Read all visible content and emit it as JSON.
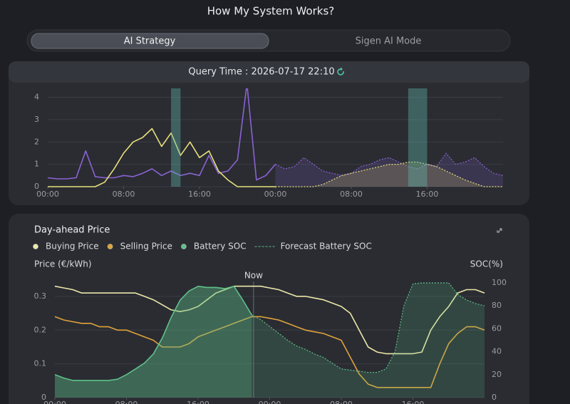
{
  "header": {
    "title": "How My System Works?"
  },
  "tabs": [
    "AI Strategy",
    "Sigen AI Mode"
  ],
  "query_time": "Query Time : 2026-07-17 22:10",
  "chart_data": [
    {
      "type": "line",
      "x": [
        0,
        1,
        2,
        3,
        4,
        5,
        6,
        7,
        8,
        9,
        10,
        11,
        12,
        13,
        14,
        15,
        16,
        17,
        18,
        19,
        20,
        21,
        22,
        23,
        24,
        25,
        26,
        27,
        28,
        29,
        30,
        31,
        32,
        33,
        34,
        35,
        36,
        37,
        38,
        39,
        40,
        41,
        42,
        43,
        44,
        45,
        46,
        47,
        48
      ],
      "xlim": [
        0,
        48
      ],
      "xticks": [
        {
          "value": 0,
          "label": "00:00"
        },
        {
          "value": 8,
          "label": "08:00"
        },
        {
          "value": 16,
          "label": "16:00"
        },
        {
          "value": 24,
          "label": "00:00"
        },
        {
          "value": 32,
          "label": "08:00"
        },
        {
          "value": 40,
          "label": "16:00"
        }
      ],
      "ylim": [
        0,
        4.4
      ],
      "yticks": [
        0,
        1,
        2,
        3,
        4
      ],
      "series": [
        {
          "color": "#8a63d2",
          "dash": false,
          "fill": false,
          "values": [
            0.4,
            0.35,
            0.35,
            0.4,
            1.6,
            0.45,
            0.4,
            0.4,
            0.5,
            0.45,
            0.6,
            0.8,
            0.5,
            0.7,
            0.5,
            0.6,
            0.5,
            1.4,
            0.6,
            0.7,
            1.2,
            4.6,
            0.3,
            0.5,
            1.0,
            null,
            null,
            null,
            null,
            null,
            null,
            null,
            null,
            null,
            null,
            null,
            null,
            null,
            null,
            null,
            null,
            null,
            null,
            null,
            null,
            null,
            null,
            null,
            null
          ]
        },
        {
          "color": "#8a63d2",
          "dash": true,
          "fill": true,
          "values": [
            null,
            null,
            null,
            null,
            null,
            null,
            null,
            null,
            null,
            null,
            null,
            null,
            null,
            null,
            null,
            null,
            null,
            null,
            null,
            null,
            null,
            null,
            null,
            null,
            1.0,
            0.8,
            0.9,
            1.3,
            1.0,
            0.7,
            0.6,
            0.5,
            0.6,
            0.9,
            1.0,
            1.2,
            1.3,
            1.1,
            0.9,
            0.8,
            1.0,
            0.9,
            1.5,
            1.0,
            1.1,
            1.3,
            0.9,
            0.6,
            0.5
          ]
        },
        {
          "color": "#e8df7a",
          "dash": false,
          "fill": false,
          "values": [
            0,
            0,
            0,
            0,
            0,
            0,
            0.2,
            0.8,
            1.5,
            2.0,
            2.2,
            2.6,
            1.8,
            2.4,
            1.4,
            2.0,
            1.3,
            1.6,
            0.7,
            0.3,
            0,
            0,
            0,
            0,
            0,
            null,
            null,
            null,
            null,
            null,
            null,
            null,
            null,
            null,
            null,
            null,
            null,
            null,
            null,
            null,
            null,
            null,
            null,
            null,
            null,
            null,
            null,
            null,
            null
          ]
        },
        {
          "color": "#e8df7a",
          "dash": true,
          "fill": true,
          "values": [
            null,
            null,
            null,
            null,
            null,
            null,
            null,
            null,
            null,
            null,
            null,
            null,
            null,
            null,
            null,
            null,
            null,
            null,
            null,
            null,
            null,
            null,
            null,
            null,
            0,
            0,
            0,
            0,
            0,
            0.1,
            0.3,
            0.5,
            0.6,
            0.7,
            0.8,
            0.9,
            1.0,
            1.0,
            1.1,
            1.1,
            1.0,
            0.9,
            0.7,
            0.5,
            0.3,
            0.15,
            0,
            0,
            0
          ]
        },
        {
          "color": "#5fb3a8",
          "dash": false,
          "fill": true,
          "values": [
            null,
            null,
            null,
            null,
            null,
            null,
            null,
            null,
            null,
            null,
            null,
            null,
            null,
            4.6,
            4.6,
            null,
            null,
            null,
            null,
            null,
            null,
            null,
            null,
            null,
            null,
            null,
            null,
            null,
            null,
            null,
            null,
            null,
            null,
            null,
            null,
            null,
            null,
            null,
            4.6,
            4.6,
            4.6,
            null,
            null,
            null,
            null,
            null,
            null,
            null,
            null
          ]
        }
      ]
    },
    {
      "type": "line",
      "title": "Day-ahead Price",
      "y_label": "Price (€/kWh)",
      "y2_label": "SOC(%)",
      "annotation": {
        "x": 22.2,
        "text": "Now"
      },
      "x": [
        0,
        1,
        2,
        3,
        4,
        5,
        6,
        7,
        8,
        9,
        10,
        11,
        12,
        13,
        14,
        15,
        16,
        17,
        18,
        19,
        20,
        21,
        22,
        23,
        24,
        25,
        26,
        27,
        28,
        29,
        30,
        31,
        32,
        33,
        34,
        35,
        36,
        37,
        38,
        39,
        40,
        41,
        42,
        43,
        44,
        45,
        46,
        47,
        48
      ],
      "xlim": [
        0,
        48
      ],
      "xticks": [
        {
          "value": 0,
          "label": "00:00"
        },
        {
          "value": 8,
          "label": "08:00"
        },
        {
          "value": 16,
          "label": "16:00"
        },
        {
          "value": 24,
          "label": "00:00"
        },
        {
          "value": 32,
          "label": "08:00"
        },
        {
          "value": 40,
          "label": "16:00"
        }
      ],
      "ylim": [
        0,
        0.34
      ],
      "yticks": [
        0,
        0.1,
        0.2,
        0.3
      ],
      "y2lim": [
        0,
        100
      ],
      "y2ticks": [
        0,
        20,
        40,
        60,
        80,
        100
      ],
      "series": [
        {
          "name": "Buying Price",
          "color": "#ece7a8",
          "dash": false,
          "fill": false,
          "values": [
            0.33,
            0.325,
            0.32,
            0.31,
            0.31,
            0.31,
            0.31,
            0.31,
            0.31,
            0.31,
            0.3,
            0.29,
            0.275,
            0.26,
            0.255,
            0.26,
            0.27,
            0.29,
            0.31,
            0.32,
            0.33,
            0.33,
            0.33,
            0.33,
            0.325,
            0.32,
            0.31,
            0.3,
            0.3,
            0.295,
            0.29,
            0.28,
            0.27,
            0.25,
            0.2,
            0.15,
            0.135,
            0.13,
            0.13,
            0.13,
            0.13,
            0.135,
            0.2,
            0.24,
            0.27,
            0.31,
            0.32,
            0.32,
            0.31
          ]
        },
        {
          "name": "Selling Price",
          "color": "#e0a23a",
          "dash": false,
          "fill": false,
          "values": [
            0.24,
            0.23,
            0.225,
            0.22,
            0.22,
            0.21,
            0.21,
            0.2,
            0.2,
            0.19,
            0.18,
            0.17,
            0.15,
            0.15,
            0.15,
            0.16,
            0.18,
            0.19,
            0.2,
            0.21,
            0.22,
            0.23,
            0.24,
            0.24,
            0.235,
            0.23,
            0.22,
            0.21,
            0.2,
            0.195,
            0.19,
            0.18,
            0.17,
            0.12,
            0.07,
            0.04,
            0.03,
            0.03,
            0.03,
            0.03,
            0.03,
            0.03,
            0.03,
            0.1,
            0.16,
            0.19,
            0.21,
            0.21,
            0.2
          ]
        },
        {
          "name": "Battery SOC",
          "color": "#5fc08a",
          "dash": false,
          "fill": true,
          "values": [
            20,
            17,
            15,
            15,
            15,
            15,
            15,
            16,
            20,
            25,
            30,
            38,
            52,
            70,
            85,
            93,
            97,
            96,
            96,
            95,
            97,
            85,
            72,
            null,
            null,
            null,
            null,
            null,
            null,
            null,
            null,
            null,
            null,
            null,
            null,
            null,
            null,
            null,
            null,
            null,
            null,
            null,
            null,
            null,
            null,
            null,
            null,
            null,
            null
          ],
          "axis": "y2"
        },
        {
          "name": "Forecast Battery SOC",
          "color": "#5fc08a",
          "dash": true,
          "fill": true,
          "values": [
            null,
            null,
            null,
            null,
            null,
            null,
            null,
            null,
            null,
            null,
            null,
            null,
            null,
            null,
            null,
            null,
            null,
            null,
            null,
            null,
            null,
            null,
            72,
            68,
            62,
            56,
            50,
            45,
            42,
            38,
            35,
            30,
            25,
            24,
            23,
            22,
            22,
            25,
            40,
            80,
            99,
            100,
            100,
            100,
            100,
            90,
            85,
            82,
            80
          ],
          "axis": "y2"
        }
      ]
    }
  ]
}
